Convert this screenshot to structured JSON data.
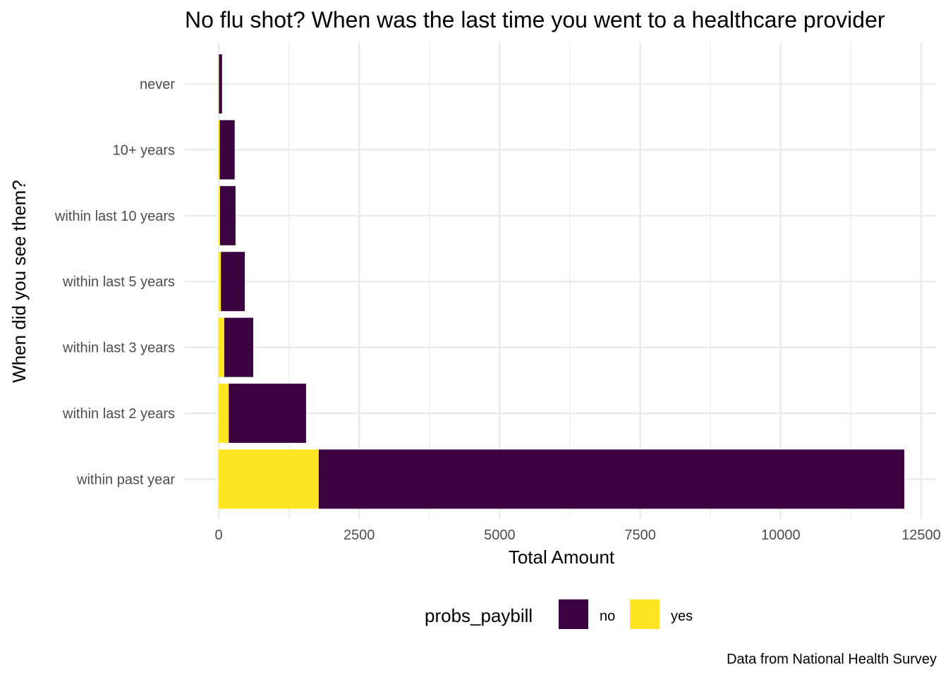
{
  "chart_data": {
    "type": "bar",
    "orientation": "horizontal",
    "stacked": true,
    "title": "No flu shot? When was the last time you went to a healthcare provider",
    "xlabel": "Total Amount",
    "ylabel": "When did you see them?",
    "caption": "Data from National Health Survey",
    "xlim": [
      0,
      12500
    ],
    "xticks": [
      0,
      2500,
      5000,
      7500,
      10000,
      12500
    ],
    "xtick_labels": [
      "0",
      "2500",
      "5000",
      "7500",
      "10000",
      "12500"
    ],
    "grid": true,
    "legend": {
      "title": "probs_paybill",
      "position": "bottom"
    },
    "categories": [
      "never",
      "10+ years",
      "within last 10 years",
      "within last 5 years",
      "within last 3 years",
      "within last 2 years",
      "within past year"
    ],
    "series": [
      {
        "name": "yes",
        "color": "#FDE725",
        "values": [
          5,
          20,
          25,
          40,
          100,
          180,
          1780
        ]
      },
      {
        "name": "no",
        "color": "#3A0241",
        "values": [
          55,
          265,
          275,
          425,
          515,
          1375,
          10420
        ]
      }
    ]
  }
}
